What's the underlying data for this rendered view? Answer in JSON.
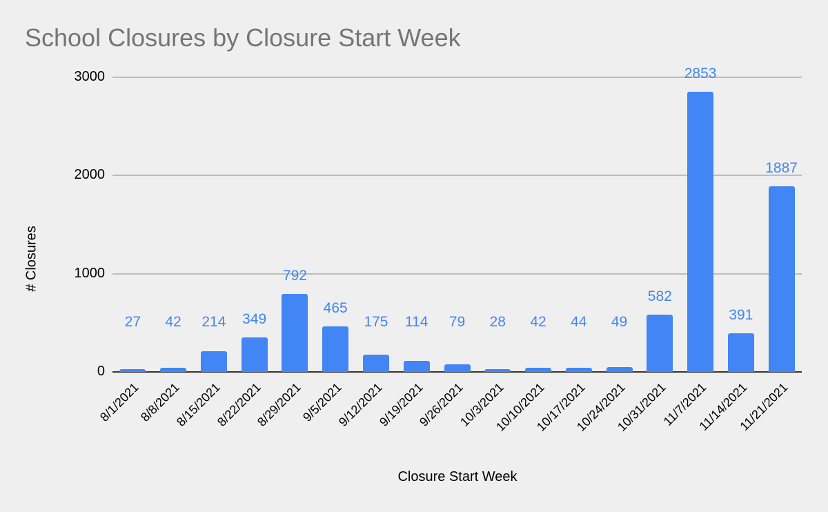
{
  "chart_data": {
    "type": "bar",
    "title": "School Closures by Closure Start Week",
    "xlabel": "Closure Start Week",
    "ylabel": "# Closures",
    "ylim": [
      0,
      3000
    ],
    "yticks": [
      0,
      1000,
      2000,
      3000
    ],
    "grid": true,
    "legend": "none",
    "bar_color": "#4285f4",
    "categories": [
      "8/1/2021",
      "8/8/2021",
      "8/15/2021",
      "8/22/2021",
      "8/29/2021",
      "9/5/2021",
      "9/12/2021",
      "9/19/2021",
      "9/26/2021",
      "10/3/2021",
      "10/10/2021",
      "10/17/2021",
      "10/24/2021",
      "10/31/2021",
      "11/7/2021",
      "11/14/2021",
      "11/21/2021"
    ],
    "values": [
      27,
      42,
      214,
      349,
      792,
      465,
      175,
      114,
      79,
      28,
      42,
      44,
      49,
      582,
      2853,
      391,
      1887
    ]
  }
}
